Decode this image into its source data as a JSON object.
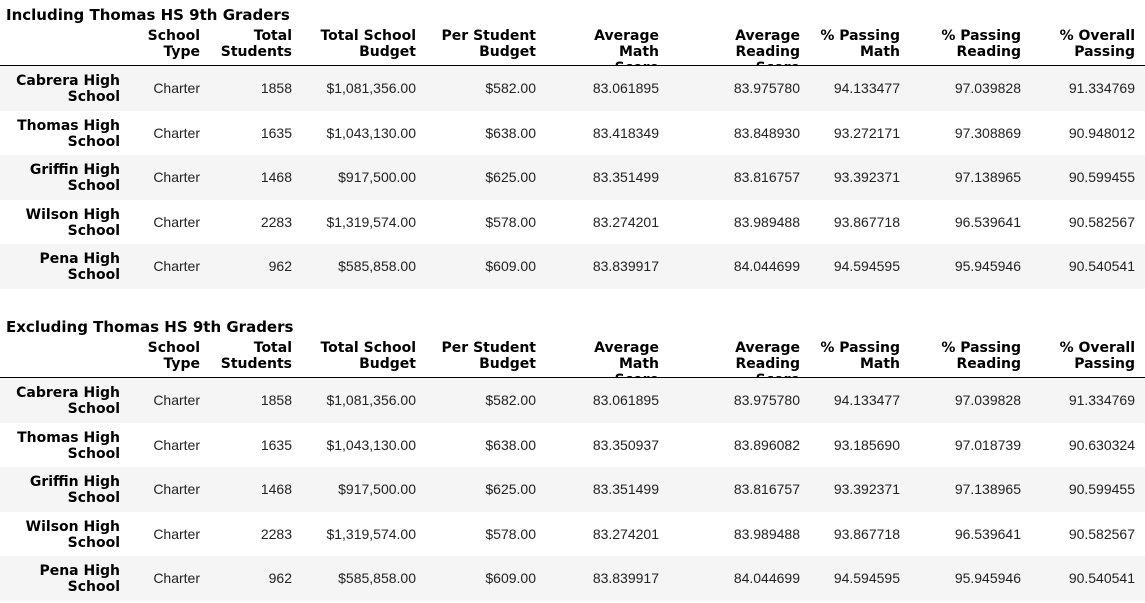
{
  "tables": [
    {
      "title": "Including Thomas HS 9th Graders",
      "headers": [
        "School\nType",
        "Total\nStudents",
        "Total School\nBudget",
        "Per Student\nBudget",
        "Average Math\nScore",
        "Average Reading\nScore",
        "% Passing\nMath",
        "% Passing\nReading",
        "% Overall\nPassing"
      ],
      "rows": [
        {
          "name": "Cabrera High\nSchool",
          "type": "Charter",
          "total": "1858",
          "budget": "$1,081,356.00",
          "per": "$582.00",
          "math": "83.061895",
          "read": "83.975780",
          "pm": "94.133477",
          "pr": "97.039828",
          "op": "91.334769"
        },
        {
          "name": "Thomas High\nSchool",
          "type": "Charter",
          "total": "1635",
          "budget": "$1,043,130.00",
          "per": "$638.00",
          "math": "83.418349",
          "read": "83.848930",
          "pm": "93.272171",
          "pr": "97.308869",
          "op": "90.948012"
        },
        {
          "name": "Griffin High\nSchool",
          "type": "Charter",
          "total": "1468",
          "budget": "$917,500.00",
          "per": "$625.00",
          "math": "83.351499",
          "read": "83.816757",
          "pm": "93.392371",
          "pr": "97.138965",
          "op": "90.599455"
        },
        {
          "name": "Wilson High\nSchool",
          "type": "Charter",
          "total": "2283",
          "budget": "$1,319,574.00",
          "per": "$578.00",
          "math": "83.274201",
          "read": "83.989488",
          "pm": "93.867718",
          "pr": "96.539641",
          "op": "90.582567"
        },
        {
          "name": "Pena High\nSchool",
          "type": "Charter",
          "total": "962",
          "budget": "$585,858.00",
          "per": "$609.00",
          "math": "83.839917",
          "read": "84.044699",
          "pm": "94.594595",
          "pr": "95.945946",
          "op": "90.540541"
        }
      ]
    },
    {
      "title": "Excluding Thomas HS 9th Graders",
      "headers": [
        "School\nType",
        "Total\nStudents",
        "Total School\nBudget",
        "Per Student\nBudget",
        "Average Math\nScore",
        "Average Reading\nScore",
        "% Passing\nMath",
        "% Passing\nReading",
        "% Overall\nPassing"
      ],
      "rows": [
        {
          "name": "Cabrera High\nSchool",
          "type": "Charter",
          "total": "1858",
          "budget": "$1,081,356.00",
          "per": "$582.00",
          "math": "83.061895",
          "read": "83.975780",
          "pm": "94.133477",
          "pr": "97.039828",
          "op": "91.334769"
        },
        {
          "name": "Thomas High\nSchool",
          "type": "Charter",
          "total": "1635",
          "budget": "$1,043,130.00",
          "per": "$638.00",
          "math": "83.350937",
          "read": "83.896082",
          "pm": "93.185690",
          "pr": "97.018739",
          "op": "90.630324"
        },
        {
          "name": "Griffin High\nSchool",
          "type": "Charter",
          "total": "1468",
          "budget": "$917,500.00",
          "per": "$625.00",
          "math": "83.351499",
          "read": "83.816757",
          "pm": "93.392371",
          "pr": "97.138965",
          "op": "90.599455"
        },
        {
          "name": "Wilson High\nSchool",
          "type": "Charter",
          "total": "2283",
          "budget": "$1,319,574.00",
          "per": "$578.00",
          "math": "83.274201",
          "read": "83.989488",
          "pm": "93.867718",
          "pr": "96.539641",
          "op": "90.582567"
        },
        {
          "name": "Pena High\nSchool",
          "type": "Charter",
          "total": "962",
          "budget": "$585,858.00",
          "per": "$609.00",
          "math": "83.839917",
          "read": "84.044699",
          "pm": "94.594595",
          "pr": "95.945946",
          "op": "90.540541"
        }
      ]
    }
  ]
}
